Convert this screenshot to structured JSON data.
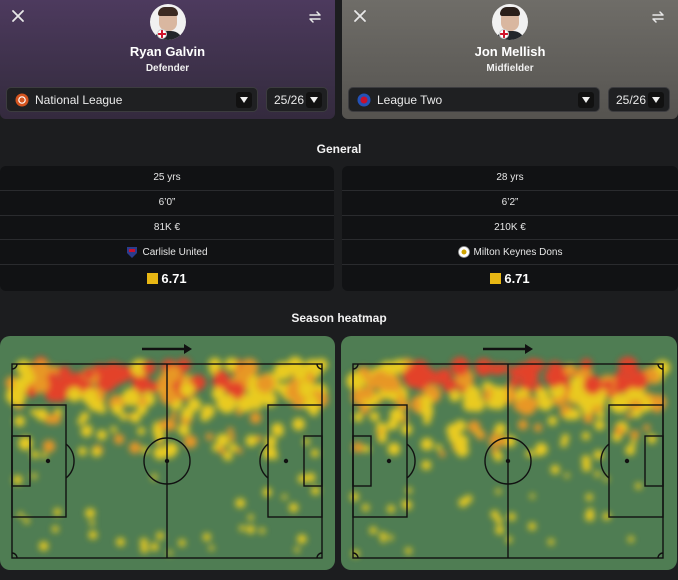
{
  "players": [
    {
      "name": "Ryan Galvin",
      "position": "Defender",
      "league": "National League",
      "season": "25/26",
      "colors": {
        "league_logo": "#d4541f"
      },
      "stats": {
        "age": "25 yrs",
        "height": "6’0”",
        "value": "81K €",
        "club": "Carlisle United",
        "rating": "6.71"
      },
      "club_colors": {
        "primary": "#2c3c8c",
        "secondary": "#c8102e"
      }
    },
    {
      "name": "Jon Mellish",
      "position": "Midfielder",
      "league": "League Two",
      "season": "25/26",
      "colors": {
        "league_logo": "#2452b8"
      },
      "stats": {
        "age": "28 yrs",
        "height": "6’2”",
        "value": "210K €",
        "club": "Milton Keynes Dons",
        "rating": "6.71"
      },
      "club_colors": {
        "primary": "#ffffff",
        "secondary": "#d0a400"
      }
    }
  ],
  "sections": {
    "general": "General",
    "heatmap": "Season heatmap"
  },
  "icons": {
    "close": "close-icon",
    "swap": "swap-icon",
    "caret": "chevron-down-icon",
    "arrow": "attack-direction-arrow"
  },
  "theme": {
    "accent_rating": "#e8b714",
    "pitch": "#4f7d53",
    "heat_hot": "#f03c28",
    "heat_warm": "#f7d21e"
  }
}
